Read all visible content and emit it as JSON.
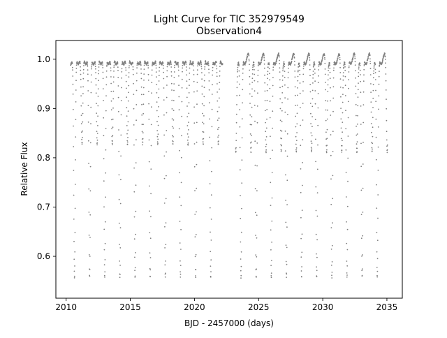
{
  "chart_data": {
    "type": "scatter",
    "title": "Light Curve for TIC 352979549",
    "subtitle": "Observation4",
    "xlabel": "BJD - 2457000 (days)",
    "ylabel": "Relative Flux",
    "xlim": [
      2009.2,
      2036.2
    ],
    "ylim": [
      0.515,
      1.038
    ],
    "xticks": [
      2010,
      2015,
      2020,
      2025,
      2030,
      2035
    ],
    "xtick_labels": [
      "2010",
      "2015",
      "2020",
      "2025",
      "2030",
      "2035"
    ],
    "yticks": [
      0.6,
      0.7,
      0.8,
      0.9,
      1.0
    ],
    "ytick_labels": [
      "0.6",
      "0.7",
      "0.8",
      "0.9",
      "1.0"
    ],
    "grid": false,
    "marker_color": "#808080",
    "data_span": [
      2010.35,
      2035.05
    ],
    "data_gap": [
      2022.2,
      2023.2
    ],
    "primary_eclipse_times": [
      2010.65,
      2011.83,
      2013.01,
      2014.19,
      2015.37,
      2016.55,
      2017.73,
      2018.91,
      2020.09,
      2021.27,
      2023.63,
      2024.81,
      2025.99,
      2027.17,
      2028.35,
      2029.53,
      2030.71,
      2031.89,
      2033.07,
      2034.25
    ],
    "secondary_eclipse_times": [
      2011.24,
      2012.42,
      2013.6,
      2014.78,
      2015.96,
      2017.14,
      2018.32,
      2019.5,
      2020.68,
      2021.86,
      2023.22,
      2024.4,
      2025.58,
      2026.76,
      2027.94,
      2029.12,
      2030.3,
      2031.48,
      2032.66,
      2033.84,
      2035.02
    ],
    "primary_eclipse_depth": 0.545,
    "secondary_eclipse_depth": 0.815,
    "out_of_eclipse_flux": [
      0.99,
      1.012
    ]
  }
}
